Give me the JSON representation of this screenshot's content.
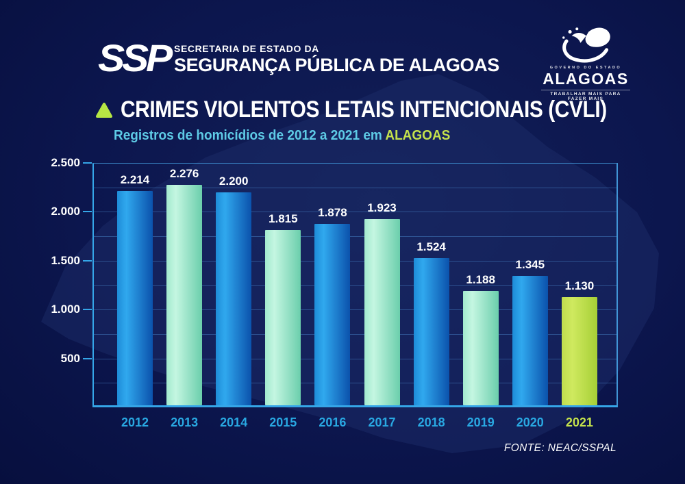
{
  "header": {
    "ssp_logo": "SSP",
    "dept_line1": "SECRETARIA DE ESTADO DA",
    "dept_line2": "SEGURANÇA PÚBLICA DE ALAGOAS",
    "gov_logo": {
      "small_top": "GOVERNO DO ESTADO",
      "name": "ALAGOAS",
      "tagline": "TRABALHAR MAIS PARA FAZER MAIS"
    }
  },
  "title": {
    "text": "CRIMES VIOLENTOS LETAIS INTENCIONAIS (CVLI)",
    "subtitle_prefix": "Registros de homicídios de 2012 a 2021 em ",
    "subtitle_highlight": "ALAGOAS"
  },
  "chart_data": {
    "type": "bar",
    "title": "CRIMES VIOLENTOS LETAIS INTENCIONAIS (CVLI)",
    "subtitle": "Registros de homicídios de 2012 a 2021 em ALAGOAS",
    "categories": [
      "2012",
      "2013",
      "2014",
      "2015",
      "2016",
      "2017",
      "2018",
      "2019",
      "2020",
      "2021"
    ],
    "values": [
      2214,
      2276,
      2200,
      1815,
      1878,
      1923,
      1524,
      1188,
      1345,
      1130
    ],
    "value_labels": [
      "2.214",
      "2.276",
      "2.200",
      "1.815",
      "1.878",
      "1.923",
      "1.524",
      "1.188",
      "1.345",
      "1.130"
    ],
    "ylim": [
      0,
      2500
    ],
    "grid_step": 250,
    "y_ticks": [
      500,
      1000,
      1500,
      2000,
      2500
    ],
    "y_tick_labels": [
      "500",
      "1.000",
      "1.500",
      "2.000",
      "2.500"
    ],
    "legend": "none",
    "grid": "on",
    "bar_color_keys": [
      "blue",
      "green",
      "blue",
      "green",
      "blue",
      "green",
      "blue",
      "green",
      "blue",
      "lime"
    ],
    "colors": {
      "background": "#0c164e",
      "map_silhouette": "#1c2c68",
      "axis": "#35a6e8",
      "grid": "#4a8cd7",
      "title_text": "#ffffff",
      "subtitle_cyan": "#5ecbe6",
      "lime_accent": "#c4e24c",
      "year_label_cyan": "#29a8e2",
      "year_label_lime": "#c4e24c",
      "bar_blue": [
        "#1e8cd8",
        "#30a8ee",
        "#0b52ac"
      ],
      "bar_green": [
        "#a2eace",
        "#c4f6e1",
        "#6bceac"
      ],
      "bar_lime": [
        "#c0dd4e",
        "#cfe95f",
        "#a6cf36"
      ]
    }
  },
  "footer": {
    "source": "FONTE: NEAC/SSPAL"
  }
}
